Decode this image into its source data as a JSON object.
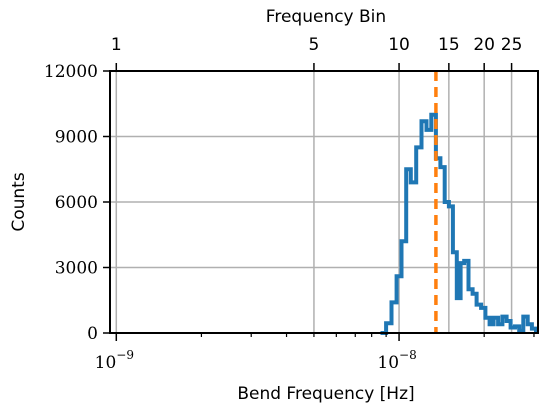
{
  "chart_data": {
    "type": "histogram-step",
    "xlabel": "Bend Frequency [Hz]",
    "ylabel": "Counts",
    "top_xlabel": "Frequency Bin",
    "xscale": "log",
    "xlim": [
      9.5e-10,
      3.1e-08
    ],
    "ylim": [
      0,
      12000
    ],
    "grid": true,
    "y_ticks": [
      0,
      3000,
      6000,
      9000,
      12000
    ],
    "y_tick_labels": [
      "0",
      "3000",
      "6000",
      "9000",
      "12000"
    ],
    "x_ticks": [
      1e-09,
      1e-08
    ],
    "x_tick_labels": [
      "10",
      "10"
    ],
    "x_tick_exponents": [
      "−9",
      "−8"
    ],
    "top_ticks": [
      1,
      5,
      10,
      15,
      20,
      25
    ],
    "top_tick_labels": [
      "1",
      "5",
      "10",
      "15",
      "20",
      "25"
    ],
    "top_bin_width_hz": 1e-09,
    "reference_line": {
      "x": 1.35e-08,
      "color": "#ff7f0e",
      "style": "dashed"
    },
    "series": [
      {
        "color": "#1f77b4",
        "x": [
          8.6e-09,
          9e-09,
          9.4e-09,
          9.8e-09,
          1.02e-08,
          1.06e-08,
          1.1e-08,
          1.15e-08,
          1.2e-08,
          1.25e-08,
          1.3e-08,
          1.35e-08,
          1.4e-08,
          1.45e-08,
          1.5e-08,
          1.55e-08,
          1.6e-08,
          1.65e-08,
          1.7e-08,
          1.76e-08,
          1.82e-08,
          1.88e-08,
          1.95e-08,
          2.02e-08,
          2.09e-08,
          2.16e-08,
          2.24e-08,
          2.32e-08,
          2.4e-08,
          2.48e-08,
          2.57e-08,
          2.66e-08,
          2.75e-08,
          2.85e-08,
          2.95e-08,
          3.05e-08
        ],
        "values": [
          0,
          450,
          1400,
          2600,
          4200,
          7500,
          6900,
          8500,
          9700,
          9300,
          10000,
          8000,
          7600,
          6000,
          5800,
          3700,
          1600,
          3200,
          3300,
          2000,
          1800,
          1300,
          1150,
          700,
          400,
          700,
          400,
          750,
          550,
          250,
          300,
          100,
          750,
          400,
          200,
          100
        ]
      }
    ]
  }
}
